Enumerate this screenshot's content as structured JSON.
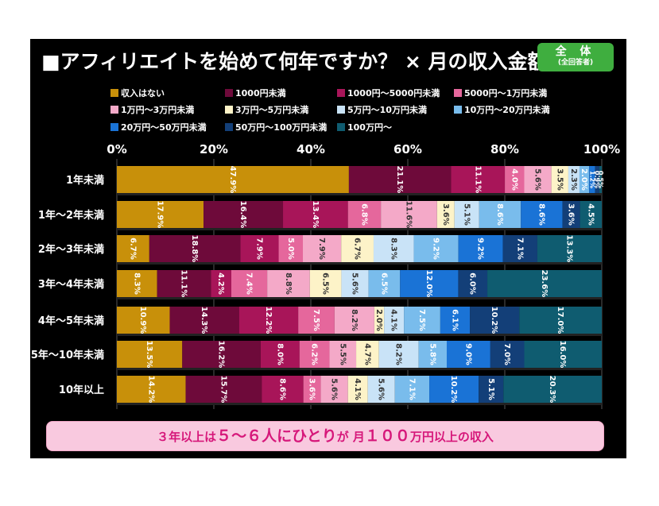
{
  "title": "■アフィリエイトを始めて何年ですか？ × 月の収入金額",
  "badge": {
    "line1": "全 体",
    "line2": "(全回答者)"
  },
  "banner": {
    "part1": "３年以上は",
    "part2": "５〜６人にひとり",
    "part3": "が 月",
    "part4": "１００",
    "part5": "万円以上の収入"
  },
  "chart_data": {
    "type": "bar",
    "orientation": "horizontal",
    "stacked": true,
    "percent": true,
    "xlim": [
      0,
      100
    ],
    "xticks": [
      "0%",
      "20%",
      "40%",
      "60%",
      "80%",
      "100%"
    ],
    "categories": [
      "1年未満",
      "1年〜2年未満",
      "2年〜3年未満",
      "3年〜4年未満",
      "4年〜5年未満",
      "5年〜10年未満",
      "10年以上"
    ],
    "series": [
      {
        "name": "収入はない",
        "color": "#c8900a",
        "values": [
          47.9,
          17.9,
          6.7,
          8.3,
          10.9,
          13.5,
          14.2
        ],
        "labels": [
          "47.9%",
          "17.9%",
          "6.7%",
          "8.3%",
          "10.9%",
          "13.5%",
          "14.2%"
        ]
      },
      {
        "name": "1000円未満",
        "color": "#6e0a3a",
        "values": [
          21.1,
          16.4,
          18.8,
          11.1,
          14.3,
          16.2,
          15.7
        ],
        "labels": [
          "21.1%",
          "16.4%",
          "18.8%",
          "11.1%",
          "14.3%",
          "16.2%",
          "15.7%"
        ]
      },
      {
        "name": "1000円〜5000円未満",
        "color": "#a81559",
        "values": [
          11.1,
          13.4,
          7.9,
          4.2,
          12.2,
          8.0,
          8.6
        ],
        "labels": [
          "11.1%",
          "13.4%",
          "7.9%",
          "4.2%",
          "12.2%",
          "8.0%",
          "8.6%"
        ]
      },
      {
        "name": "5000円〜1万円未満",
        "color": "#e5679c",
        "values": [
          4.0,
          6.8,
          5.0,
          7.4,
          7.5,
          6.2,
          3.6
        ],
        "labels": [
          "4.0%",
          "6.8%",
          "5.0%",
          "7.4%",
          "7.5%",
          "6.2%",
          "3.6%"
        ]
      },
      {
        "name": "1万円〜3万円未満",
        "color": "#f4a9c8",
        "values": [
          5.6,
          11.6,
          7.9,
          8.8,
          8.2,
          5.5,
          5.6
        ],
        "labels": [
          "5.6%",
          "11.6%",
          "7.9%",
          "8.8%",
          "8.2%",
          "5.5%",
          "5.6%"
        ]
      },
      {
        "name": "3万円〜5万円未満",
        "color": "#fdf3c8",
        "values": [
          3.5,
          3.6,
          6.7,
          6.5,
          2.0,
          4.7,
          4.1
        ],
        "labels": [
          "3.5%",
          "3.6%",
          "6.7%",
          "6.5%",
          "2.0%",
          "4.7%",
          "4.1%"
        ]
      },
      {
        "name": "5万円〜10万円未満",
        "color": "#c9e3f7",
        "values": [
          2.3,
          5.1,
          8.3,
          5.6,
          4.1,
          8.2,
          5.6
        ],
        "labels": [
          "2.3%",
          "5.1%",
          "8.3%",
          "5.6%",
          "4.1%",
          "8.2%",
          "5.6%"
        ]
      },
      {
        "name": "10万円〜20万円未満",
        "color": "#79bcec",
        "values": [
          2.0,
          8.6,
          9.2,
          6.5,
          7.5,
          5.8,
          7.1
        ],
        "labels": [
          "2.0%",
          "8.6%",
          "9.2%",
          "6.5%",
          "7.5%",
          "5.8%",
          "7.1%"
        ]
      },
      {
        "name": "20万円〜50万円未満",
        "color": "#1a73d6",
        "values": [
          1.2,
          8.6,
          9.2,
          12.0,
          6.1,
          9.0,
          10.2
        ],
        "labels": [
          "1.2%",
          "8.6%",
          "9.2%",
          "12.0%",
          "6.1%",
          "9.0%",
          "10.2%"
        ]
      },
      {
        "name": "50万円〜100万円未満",
        "color": "#133f78",
        "values": [
          0.9,
          3.6,
          7.1,
          6.0,
          10.2,
          7.0,
          5.1
        ],
        "labels": [
          "0.9%",
          "3.6%",
          "7.1%",
          "6.0%",
          "10.2%",
          "7.0%",
          "5.1%"
        ]
      },
      {
        "name": "100万円〜",
        "color": "#0f5c70",
        "values": [
          0.5,
          4.5,
          13.3,
          23.6,
          17.0,
          16.0,
          20.3
        ],
        "labels": [
          "0.5%",
          "4.5%",
          "13.3%",
          "23.6%",
          "17.0%",
          "16.0%",
          "20.3%"
        ]
      }
    ]
  }
}
